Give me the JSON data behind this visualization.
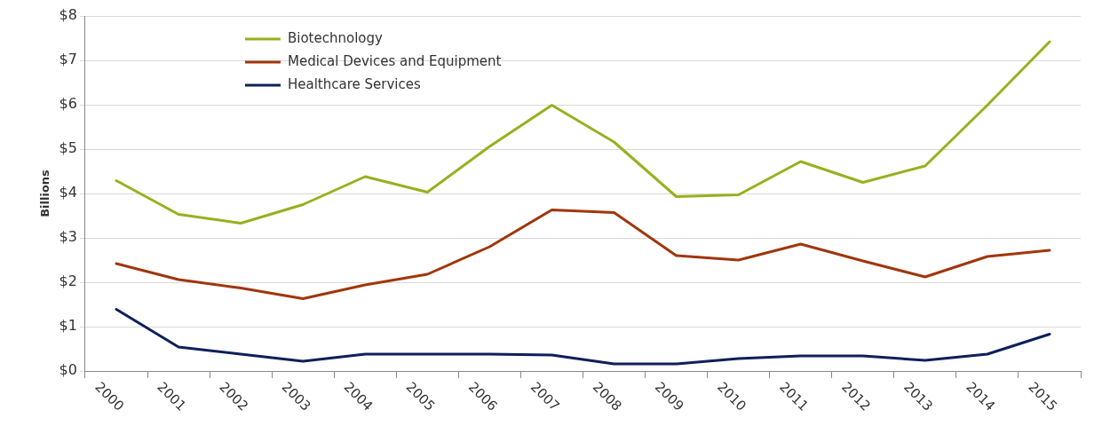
{
  "chart_data": {
    "type": "line",
    "ylabel": "Billions",
    "categories": [
      "2000",
      "2001",
      "2002",
      "2003",
      "2004",
      "2005",
      "2006",
      "2007",
      "2008",
      "2009",
      "2010",
      "2011",
      "2012",
      "2013",
      "2014",
      "2015"
    ],
    "series": [
      {
        "name": "Biotechnology",
        "color": "#9aaf1f",
        "values": [
          4.29,
          3.53,
          3.33,
          3.75,
          4.38,
          4.03,
          5.06,
          5.99,
          5.16,
          3.93,
          3.97,
          4.72,
          4.25,
          4.62,
          5.99,
          7.42
        ]
      },
      {
        "name": "Medical Devices and Equipment",
        "color": "#a0360c",
        "values": [
          2.42,
          2.06,
          1.87,
          1.63,
          1.94,
          2.18,
          2.8,
          3.63,
          3.57,
          2.6,
          2.5,
          2.86,
          2.48,
          2.12,
          2.58,
          2.72
        ]
      },
      {
        "name": "Healthcare Services",
        "color": "#0e1f5b",
        "values": [
          1.39,
          0.54,
          0.38,
          0.22,
          0.38,
          0.38,
          0.38,
          0.36,
          0.16,
          0.16,
          0.28,
          0.34,
          0.34,
          0.24,
          0.38,
          0.83
        ]
      }
    ],
    "ylim": [
      0,
      8
    ],
    "yticks": [
      {
        "value": 0,
        "label": "$0"
      },
      {
        "value": 1,
        "label": "$1"
      },
      {
        "value": 2,
        "label": "$2"
      },
      {
        "value": 3,
        "label": "$3"
      },
      {
        "value": 4,
        "label": "$4"
      },
      {
        "value": 5,
        "label": "$5"
      },
      {
        "value": 6,
        "label": "$6"
      },
      {
        "value": 7,
        "label": "$7"
      },
      {
        "value": 8,
        "label": "$8"
      }
    ],
    "grid": "y",
    "legend": "top left",
    "marker": "none",
    "line_style": "solid"
  }
}
